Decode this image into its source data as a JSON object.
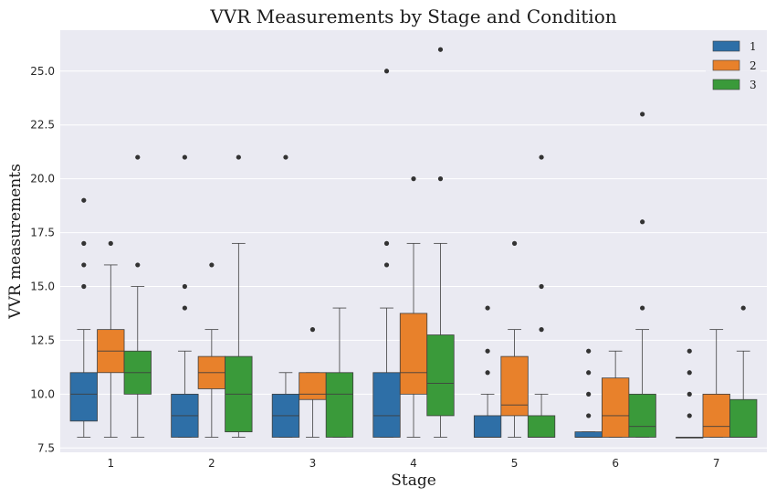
{
  "chart_data": {
    "type": "box",
    "title": "VVR Measurements by Stage and Condition",
    "xlabel": "Stage",
    "ylabel": "VVR measurements",
    "categories": [
      "1",
      "2",
      "3",
      "4",
      "5",
      "6",
      "7"
    ],
    "ylim": [
      7.3,
      26.9
    ],
    "yticks": [
      7.5,
      10.0,
      12.5,
      15.0,
      17.5,
      20.0,
      22.5,
      25.0
    ],
    "ytick_labels": [
      "7.5",
      "10.0",
      "12.5",
      "15.0",
      "17.5",
      "20.0",
      "22.5",
      "25.0"
    ],
    "grid": true,
    "legend_position": "top-right",
    "series": [
      {
        "name": "1",
        "color": "#2e6fa7",
        "boxes": [
          {
            "whisker_low": 8,
            "q1": 8.75,
            "median": 10,
            "q3": 11,
            "whisker_high": 13,
            "outliers": [
              15,
              16,
              17,
              19
            ]
          },
          {
            "whisker_low": 8,
            "q1": 8,
            "median": 9,
            "q3": 10,
            "whisker_high": 12,
            "outliers": [
              14,
              15,
              21
            ]
          },
          {
            "whisker_low": 8,
            "q1": 8,
            "median": 9,
            "q3": 10,
            "whisker_high": 11,
            "outliers": [
              21
            ]
          },
          {
            "whisker_low": 8,
            "q1": 8,
            "median": 9,
            "q3": 11,
            "whisker_high": 14,
            "outliers": [
              16,
              17,
              25
            ]
          },
          {
            "whisker_low": 8,
            "q1": 8,
            "median": 8,
            "q3": 9,
            "whisker_high": 10,
            "outliers": [
              11,
              12,
              14
            ]
          },
          {
            "whisker_low": 8,
            "q1": 8,
            "median": 8,
            "q3": 8.25,
            "whisker_high": 8.25,
            "outliers": [
              9,
              10,
              11,
              12
            ]
          },
          {
            "whisker_low": 8,
            "q1": 8,
            "median": 8,
            "q3": 8,
            "whisker_high": 8,
            "outliers": [
              9,
              10,
              11,
              12
            ]
          }
        ]
      },
      {
        "name": "2",
        "color": "#e8812b",
        "boxes": [
          {
            "whisker_low": 8,
            "q1": 11,
            "median": 12,
            "q3": 13,
            "whisker_high": 16,
            "outliers": [
              17
            ]
          },
          {
            "whisker_low": 8,
            "q1": 10.25,
            "median": 11,
            "q3": 11.75,
            "whisker_high": 13,
            "outliers": [
              16
            ]
          },
          {
            "whisker_low": 8,
            "q1": 9.75,
            "median": 10,
            "q3": 11,
            "whisker_high": 11,
            "outliers": [
              13
            ]
          },
          {
            "whisker_low": 8,
            "q1": 10,
            "median": 11,
            "q3": 13.75,
            "whisker_high": 17,
            "outliers": [
              20
            ]
          },
          {
            "whisker_low": 8,
            "q1": 9,
            "median": 9.5,
            "q3": 11.75,
            "whisker_high": 13,
            "outliers": [
              17
            ]
          },
          {
            "whisker_low": 8,
            "q1": 8,
            "median": 9,
            "q3": 10.75,
            "whisker_high": 12,
            "outliers": []
          },
          {
            "whisker_low": 8,
            "q1": 8,
            "median": 8.5,
            "q3": 10,
            "whisker_high": 13,
            "outliers": []
          }
        ]
      },
      {
        "name": "3",
        "color": "#3a9a3a",
        "boxes": [
          {
            "whisker_low": 8,
            "q1": 10,
            "median": 11,
            "q3": 12,
            "whisker_high": 15,
            "outliers": [
              16,
              21
            ]
          },
          {
            "whisker_low": 8,
            "q1": 8.25,
            "median": 10,
            "q3": 11.75,
            "whisker_high": 17,
            "outliers": [
              21
            ]
          },
          {
            "whisker_low": 8,
            "q1": 8,
            "median": 10,
            "q3": 11,
            "whisker_high": 14,
            "outliers": []
          },
          {
            "whisker_low": 8,
            "q1": 9,
            "median": 10.5,
            "q3": 12.75,
            "whisker_high": 17,
            "outliers": [
              20,
              26
            ]
          },
          {
            "whisker_low": 8,
            "q1": 8,
            "median": 8,
            "q3": 9,
            "whisker_high": 10,
            "outliers": [
              13,
              15,
              21
            ]
          },
          {
            "whisker_low": 8,
            "q1": 8,
            "median": 8.5,
            "q3": 10,
            "whisker_high": 13,
            "outliers": [
              14,
              18,
              23
            ]
          },
          {
            "whisker_low": 8,
            "q1": 8,
            "median": 8,
            "q3": 9.75,
            "whisker_high": 12,
            "outliers": [
              14
            ]
          }
        ]
      }
    ]
  }
}
